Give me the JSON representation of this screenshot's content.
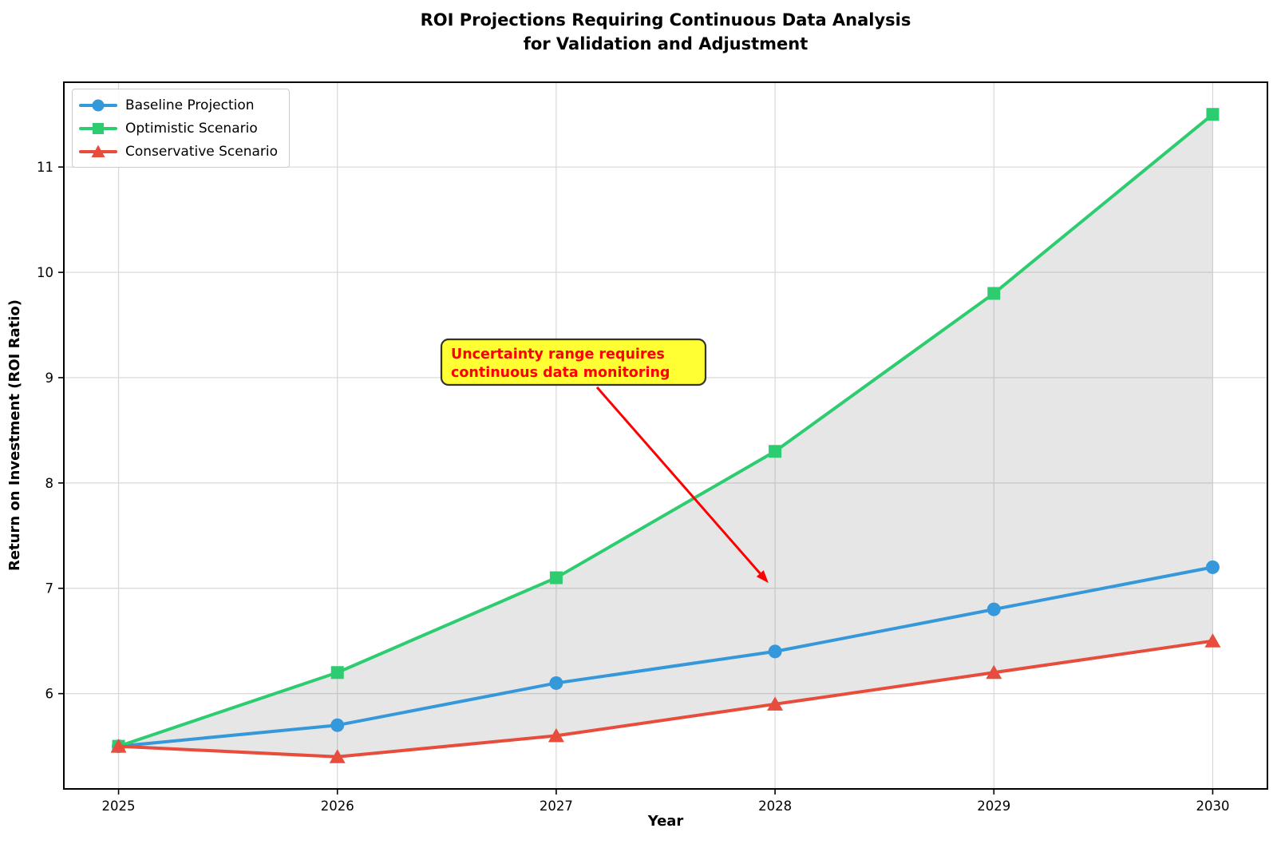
{
  "chart_data": {
    "type": "line",
    "title_lines": [
      "ROI Projections Requiring Continuous Data Analysis",
      "for Validation and Adjustment"
    ],
    "xlabel": "Year",
    "ylabel": "Return on Investment (ROI Ratio)",
    "x": [
      2025,
      2026,
      2027,
      2028,
      2029,
      2030
    ],
    "xticks": [
      "2025",
      "2026",
      "2027",
      "2028",
      "2029",
      "2030"
    ],
    "yticks": [
      "6",
      "7",
      "8",
      "9",
      "10",
      "11"
    ],
    "xlim": [
      2024.75,
      2030.25
    ],
    "ylim": [
      5.095,
      11.805
    ],
    "grid": true,
    "legend_position": "upper-left",
    "series": [
      {
        "name": "Baseline Projection",
        "marker": "circle",
        "color": "#3498db",
        "values": [
          5.5,
          5.7,
          6.1,
          6.4,
          6.8,
          7.2
        ]
      },
      {
        "name": "Optimistic Scenario",
        "marker": "square",
        "color": "#2ecc71",
        "values": [
          5.5,
          6.2,
          7.1,
          8.3,
          9.8,
          11.5
        ]
      },
      {
        "name": "Conservative Scenario",
        "marker": "triangle",
        "color": "#e74c3c",
        "values": [
          5.5,
          5.4,
          5.6,
          5.9,
          6.2,
          6.5
        ]
      }
    ],
    "uncertainty_band": {
      "upper_series": "Optimistic Scenario",
      "lower_series": "Conservative Scenario",
      "fill_color": "rgba(128,128,128,0.2)"
    },
    "annotation": {
      "lines": [
        "Uncertainty range requires",
        "continuous data monitoring"
      ],
      "text_color": "#ff0000",
      "box_fill": "#ffff33",
      "box_border": "#333333",
      "arrow_color": "#ff0000",
      "arrow_tip": {
        "x": 2027.97,
        "y": 7.05
      }
    }
  }
}
